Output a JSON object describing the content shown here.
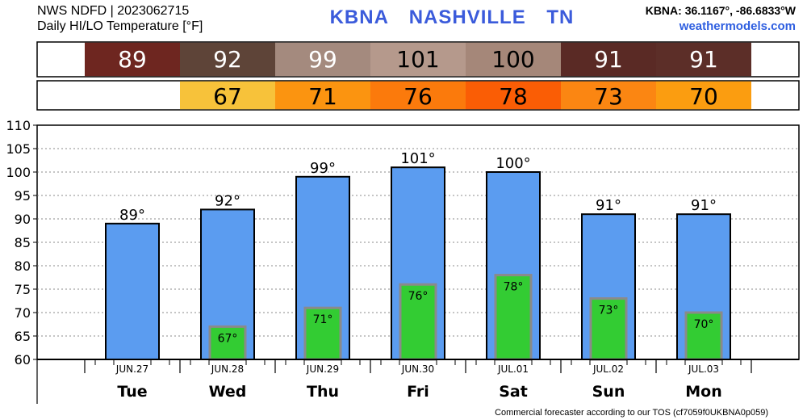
{
  "header": {
    "product": "NWS NDFD | 2023062715",
    "subtitle": "Daily HI/LO Temperature [°F]",
    "station": "KBNA",
    "city": "NASHVILLE",
    "state": "TN",
    "coords": "KBNA: 36.1167°, -86.6833°W",
    "site": "weathermodels.com"
  },
  "footer": "Commercial forecaster according to our TOS (cf7059f0UKBNA0p059)",
  "colors": {
    "high_bar": "#5b9cf0",
    "low_bar": "#33cc33",
    "low_bar_border": "#8a8a8a",
    "accent_title": "#3b5bdb"
  },
  "chart_data": {
    "type": "bar",
    "title": "Daily HI/LO Temperature [°F]",
    "days": [
      "Tue",
      "Wed",
      "Thu",
      "Fri",
      "Sat",
      "Sun",
      "Mon"
    ],
    "dates": [
      "JUN.27",
      "JUN.28",
      "JUN.29",
      "JUN.30",
      "JUL.01",
      "JUL.02",
      "JUL.03"
    ],
    "series": [
      {
        "name": "HI",
        "values": [
          89,
          92,
          99,
          101,
          100,
          91,
          91
        ]
      },
      {
        "name": "LO",
        "values": [
          null,
          67,
          71,
          76,
          78,
          73,
          70
        ]
      }
    ],
    "hi_strip_colors": [
      "#6e2620",
      "#5e4438",
      "#a48a7e",
      "#b5998c",
      "#a58779",
      "#5a2a25",
      "#5c2e28"
    ],
    "lo_strip_colors": [
      null,
      "#f7c23a",
      "#fb9410",
      "#fb7a0c",
      "#fa5d05",
      "#fb8612",
      "#fb9d10"
    ],
    "ylim": [
      60,
      110
    ],
    "yticks": [
      60,
      65,
      70,
      75,
      80,
      85,
      90,
      95,
      100,
      105,
      110
    ],
    "degree_symbol": "°",
    "grid": true
  }
}
